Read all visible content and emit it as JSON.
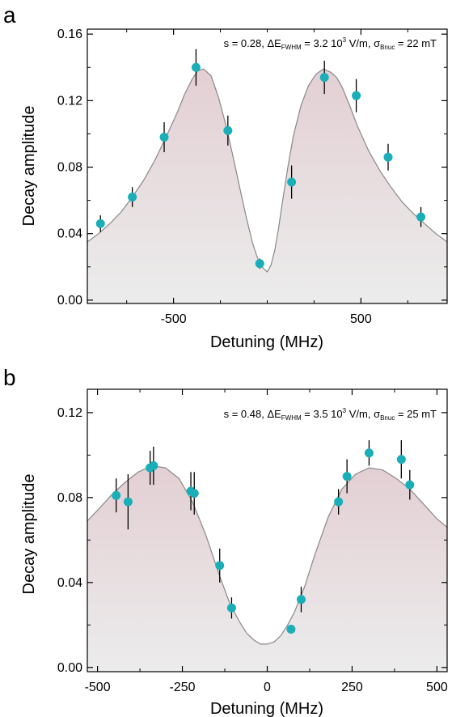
{
  "chart_data": [
    {
      "type": "scatter",
      "panel_label": "a",
      "annotation": {
        "s": "s = 0.28, ",
        "delta": "ΔE",
        "fwhm_sub": "FWHM",
        "mid": " = 3.2 10",
        "exp_sup": "3",
        "units": " V/m, ",
        "sigma": "σ",
        "bnuc_sub": "Bnuc",
        "tail": " = 22 mT"
      },
      "xlabel": "Detuning (MHz)",
      "ylabel": "Decay amplitude",
      "xlim": [
        -960,
        960
      ],
      "ylim": [
        -0.002,
        0.163
      ],
      "xticks": [
        -500,
        500
      ],
      "xticks_minor": [
        -750,
        -250,
        0,
        250,
        750
      ],
      "yticks": [
        0.0,
        0.04,
        0.08,
        0.12,
        0.16
      ],
      "ytick_labels": [
        "0.00",
        "0.04",
        "0.08",
        "0.12",
        "0.16"
      ],
      "points": [
        {
          "x": -890,
          "y": 0.046,
          "err": 0.005
        },
        {
          "x": -720,
          "y": 0.062,
          "err": 0.006
        },
        {
          "x": -550,
          "y": 0.098,
          "err": 0.009
        },
        {
          "x": -380,
          "y": 0.14,
          "err": 0.011
        },
        {
          "x": -210,
          "y": 0.102,
          "err": 0.009
        },
        {
          "x": -40,
          "y": 0.022,
          "err": 0.003
        },
        {
          "x": 130,
          "y": 0.071,
          "err": 0.01
        },
        {
          "x": 305,
          "y": 0.134,
          "err": 0.01
        },
        {
          "x": 475,
          "y": 0.123,
          "err": 0.01
        },
        {
          "x": 645,
          "y": 0.086,
          "err": 0.008
        },
        {
          "x": 820,
          "y": 0.05,
          "err": 0.006
        }
      ],
      "fit_curve": {
        "x": [
          -960,
          -900,
          -840,
          -780,
          -720,
          -660,
          -600,
          -540,
          -480,
          -440,
          -400,
          -370,
          -340,
          -300,
          -260,
          -220,
          -180,
          -140,
          -110,
          -80,
          -60,
          -40,
          -20,
          0,
          20,
          40,
          60,
          80,
          110,
          140,
          180,
          220,
          260,
          300,
          340,
          370,
          400,
          440,
          480,
          540,
          600,
          660,
          720,
          780,
          840,
          900,
          960
        ],
        "y": [
          0.035,
          0.04,
          0.046,
          0.053,
          0.062,
          0.072,
          0.084,
          0.098,
          0.113,
          0.124,
          0.133,
          0.138,
          0.139,
          0.135,
          0.122,
          0.105,
          0.085,
          0.064,
          0.049,
          0.035,
          0.028,
          0.022,
          0.019,
          0.017,
          0.021,
          0.03,
          0.043,
          0.058,
          0.08,
          0.099,
          0.117,
          0.129,
          0.136,
          0.139,
          0.137,
          0.134,
          0.128,
          0.117,
          0.105,
          0.09,
          0.078,
          0.068,
          0.059,
          0.052,
          0.046,
          0.04,
          0.035
        ]
      },
      "colors": {
        "marker": "#1aaeb8",
        "errorbar": "#000000",
        "fit": "#888888",
        "fill_top": "#e3cfd3",
        "fill_bottom": "#ececec"
      }
    },
    {
      "type": "scatter",
      "panel_label": "b",
      "annotation": {
        "s": "s = 0.48, ",
        "delta": "ΔE",
        "fwhm_sub": "FWHM",
        "mid": " = 3.5 10",
        "exp_sup": "3",
        "units": " V/m, ",
        "sigma": "σ",
        "bnuc_sub": "Bnuc",
        "tail": " = 25 mT"
      },
      "xlabel": "Detuning (MHz)",
      "ylabel": "Decay amplitude",
      "xlim": [
        -530,
        530
      ],
      "ylim": [
        -0.002,
        0.131
      ],
      "xticks": [
        -500,
        -250,
        0,
        250,
        500
      ],
      "xticks_minor": [
        -375,
        -125,
        125,
        375
      ],
      "yticks": [
        0.0,
        0.04,
        0.08,
        0.12
      ],
      "ytick_labels": [
        "0.00",
        "0.04",
        "0.08",
        "0.12"
      ],
      "points": [
        {
          "x": -445,
          "y": 0.081,
          "err": 0.008
        },
        {
          "x": -410,
          "y": 0.078,
          "err": 0.013
        },
        {
          "x": -345,
          "y": 0.094,
          "err": 0.008
        },
        {
          "x": -335,
          "y": 0.095,
          "err": 0.009
        },
        {
          "x": -225,
          "y": 0.083,
          "err": 0.009
        },
        {
          "x": -215,
          "y": 0.082,
          "err": 0.01
        },
        {
          "x": -140,
          "y": 0.048,
          "err": 0.008
        },
        {
          "x": -105,
          "y": 0.028,
          "err": 0.005
        },
        {
          "x": 70,
          "y": 0.018,
          "err": 0.002
        },
        {
          "x": 100,
          "y": 0.032,
          "err": 0.006
        },
        {
          "x": 210,
          "y": 0.078,
          "err": 0.006
        },
        {
          "x": 235,
          "y": 0.09,
          "err": 0.008
        },
        {
          "x": 300,
          "y": 0.101,
          "err": 0.006
        },
        {
          "x": 395,
          "y": 0.098,
          "err": 0.009
        },
        {
          "x": 420,
          "y": 0.086,
          "err": 0.007
        }
      ],
      "fit_curve": {
        "x": [
          -530,
          -500,
          -460,
          -420,
          -380,
          -340,
          -300,
          -260,
          -220,
          -180,
          -140,
          -110,
          -80,
          -60,
          -40,
          -20,
          0,
          20,
          40,
          60,
          80,
          110,
          140,
          180,
          220,
          260,
          300,
          340,
          380,
          420,
          460,
          500,
          530
        ],
        "y": [
          0.069,
          0.074,
          0.081,
          0.087,
          0.092,
          0.095,
          0.094,
          0.089,
          0.078,
          0.062,
          0.043,
          0.03,
          0.021,
          0.016,
          0.013,
          0.011,
          0.011,
          0.012,
          0.015,
          0.02,
          0.026,
          0.038,
          0.053,
          0.071,
          0.084,
          0.091,
          0.094,
          0.093,
          0.089,
          0.084,
          0.077,
          0.07,
          0.066
        ]
      },
      "colors": {
        "marker": "#1aaeb8",
        "errorbar": "#000000",
        "fit": "#888888",
        "fill_top": "#e3cfd3",
        "fill_bottom": "#ececec"
      }
    }
  ]
}
